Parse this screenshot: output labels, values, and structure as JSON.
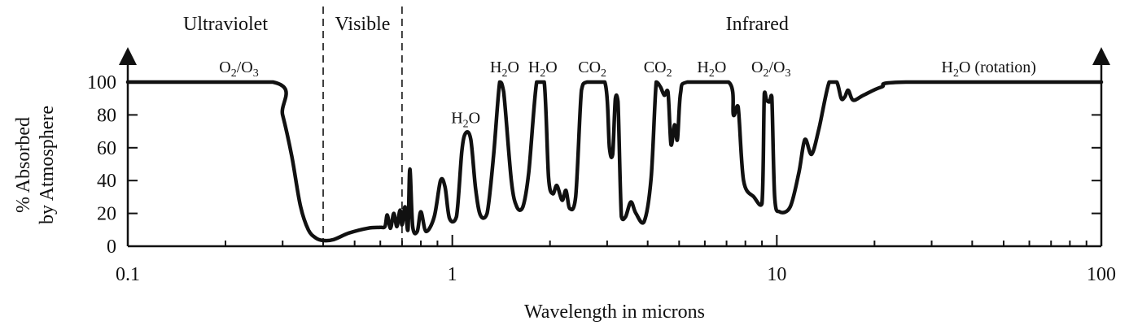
{
  "chart_data": {
    "type": "line",
    "xlabel": "Wavelength in microns",
    "ylabel_lines": [
      "% Absorbed",
      "by Atmosphere"
    ],
    "x_scale": "log",
    "xlim": [
      0.1,
      100
    ],
    "ylim": [
      0,
      100
    ],
    "x_ticks": [
      {
        "value": 0.1,
        "label": "0.1"
      },
      {
        "value": 1,
        "label": "1"
      },
      {
        "value": 10,
        "label": "10"
      },
      {
        "value": 100,
        "label": "100"
      }
    ],
    "y_ticks": [
      0,
      20,
      40,
      60,
      80,
      100
    ],
    "regions": [
      {
        "name": "Ultraviolet",
        "from": 0.1,
        "to": 0.4
      },
      {
        "name": "Visible",
        "from": 0.4,
        "to": 0.7
      },
      {
        "name": "Infrared",
        "from": 0.7,
        "to": 100
      }
    ],
    "dividers": [
      0.4,
      0.7
    ],
    "annotations": [
      {
        "molecule": "O",
        "sub1": "2",
        "mid": "/O",
        "sub2": "3",
        "tail": "",
        "x": 0.22,
        "y": 100
      },
      {
        "molecule": "H",
        "sub1": "2",
        "mid": "O",
        "sub2": "",
        "tail": "",
        "x": 1.1,
        "y": 69
      },
      {
        "molecule": "H",
        "sub1": "2",
        "mid": "O",
        "sub2": "",
        "tail": "",
        "x": 1.45,
        "y": 100
      },
      {
        "molecule": "H",
        "sub1": "2",
        "mid": "O",
        "sub2": "",
        "tail": "",
        "x": 1.9,
        "y": 100
      },
      {
        "molecule": "CO",
        "sub1": "2",
        "mid": "",
        "sub2": "",
        "tail": "",
        "x": 2.7,
        "y": 100
      },
      {
        "molecule": "CO",
        "sub1": "2",
        "mid": "",
        "sub2": "",
        "tail": "",
        "x": 4.3,
        "y": 100
      },
      {
        "molecule": "H",
        "sub1": "2",
        "mid": "O",
        "sub2": "",
        "tail": "",
        "x": 6.3,
        "y": 100
      },
      {
        "molecule": "O",
        "sub1": "2",
        "mid": "/O",
        "sub2": "3",
        "tail": "",
        "x": 9.6,
        "y": 100
      },
      {
        "molecule": "H",
        "sub1": "2",
        "mid": "O",
        "sub2": "",
        "tail": " (rotation)",
        "x": 45,
        "y": 100
      }
    ],
    "series": [
      {
        "points": [
          [
            0.1,
            100
          ],
          [
            0.28,
            100
          ],
          [
            0.3,
            80
          ],
          [
            0.32,
            55
          ],
          [
            0.34,
            25
          ],
          [
            0.36,
            10
          ],
          [
            0.38,
            5
          ],
          [
            0.4,
            3.5
          ],
          [
            0.43,
            4
          ],
          [
            0.48,
            8
          ],
          [
            0.55,
            11
          ],
          [
            0.6,
            11.5
          ],
          [
            0.62,
            12
          ],
          [
            0.63,
            19
          ],
          [
            0.645,
            11
          ],
          [
            0.66,
            20
          ],
          [
            0.675,
            12
          ],
          [
            0.69,
            22
          ],
          [
            0.7,
            13
          ],
          [
            0.715,
            24
          ],
          [
            0.73,
            10
          ],
          [
            0.74,
            47
          ],
          [
            0.755,
            12
          ],
          [
            0.78,
            9
          ],
          [
            0.8,
            21
          ],
          [
            0.83,
            9
          ],
          [
            0.88,
            18
          ],
          [
            0.92,
            40
          ],
          [
            0.95,
            36
          ],
          [
            0.98,
            17
          ],
          [
            1.03,
            18
          ],
          [
            1.07,
            58
          ],
          [
            1.1,
            69
          ],
          [
            1.14,
            65
          ],
          [
            1.18,
            35
          ],
          [
            1.22,
            19
          ],
          [
            1.28,
            20
          ],
          [
            1.34,
            55
          ],
          [
            1.4,
            100
          ],
          [
            1.44,
            94
          ],
          [
            1.52,
            40
          ],
          [
            1.58,
            24
          ],
          [
            1.65,
            24
          ],
          [
            1.72,
            45
          ],
          [
            1.82,
            100
          ],
          [
            1.92,
            100
          ],
          [
            1.98,
            42
          ],
          [
            2.04,
            32
          ],
          [
            2.1,
            37
          ],
          [
            2.18,
            28
          ],
          [
            2.24,
            34
          ],
          [
            2.3,
            23
          ],
          [
            2.4,
            30
          ],
          [
            2.5,
            95
          ],
          [
            2.6,
            100
          ],
          [
            2.95,
            100
          ],
          [
            3.05,
            60
          ],
          [
            3.12,
            56
          ],
          [
            3.18,
            90
          ],
          [
            3.24,
            88
          ],
          [
            3.32,
            18
          ],
          [
            3.42,
            18
          ],
          [
            3.55,
            27
          ],
          [
            3.68,
            20
          ],
          [
            3.9,
            15
          ],
          [
            4.1,
            42
          ],
          [
            4.25,
            100
          ],
          [
            4.38,
            97
          ],
          [
            4.5,
            92
          ],
          [
            4.62,
            94
          ],
          [
            4.72,
            62
          ],
          [
            4.84,
            74
          ],
          [
            4.94,
            65
          ],
          [
            5.05,
            93
          ],
          [
            5.3,
            100
          ],
          [
            7.1,
            100
          ],
          [
            7.35,
            80
          ],
          [
            7.6,
            85
          ],
          [
            7.9,
            40
          ],
          [
            8.5,
            30
          ],
          [
            9.0,
            26
          ],
          [
            9.15,
            93
          ],
          [
            9.3,
            89
          ],
          [
            9.5,
            88
          ],
          [
            9.65,
            91
          ],
          [
            9.85,
            30
          ],
          [
            10.2,
            21
          ],
          [
            11.0,
            24
          ],
          [
            11.7,
            45
          ],
          [
            12.2,
            65
          ],
          [
            12.8,
            56
          ],
          [
            13.5,
            72
          ],
          [
            14.5,
            100
          ],
          [
            15.3,
            100
          ],
          [
            15.8,
            90
          ],
          [
            16.2,
            91
          ],
          [
            16.6,
            95
          ],
          [
            17.2,
            89
          ],
          [
            18.5,
            92
          ],
          [
            21,
            97
          ],
          [
            25,
            100
          ],
          [
            100,
            100
          ]
        ]
      }
    ]
  }
}
